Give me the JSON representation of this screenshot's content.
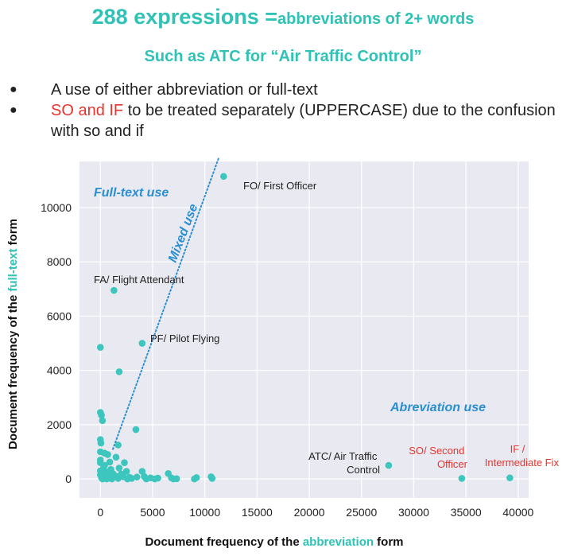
{
  "header": {
    "title_big": "288 expressions =",
    "title_small": "abbreviations of 2+ words",
    "subtitle": "Such as ATC for “Air Traffic Control”"
  },
  "bullets": [
    {
      "text": "A use of either abbreviation or full-text"
    },
    {
      "highlight": "SO and IF",
      "text": " to be treated separately (UPPERCASE) due to the confusion with so and if"
    }
  ],
  "colors": {
    "accent": "#2fc2b6",
    "point": "#3cc6be",
    "region_label": "#2a8fd0",
    "red": "#e8342e",
    "plot_bg": "#e9e9f1"
  },
  "chart_data": {
    "type": "scatter",
    "xlabel_parts": [
      "Document frequency of the ",
      "abbreviation",
      " form"
    ],
    "ylabel_parts": [
      "Document frequency of the ",
      "full-text",
      " form"
    ],
    "xlim": [
      -2000,
      41000
    ],
    "ylim": [
      -700,
      11700
    ],
    "xticks": [
      0,
      5000,
      10000,
      15000,
      20000,
      25000,
      30000,
      35000,
      40000
    ],
    "yticks": [
      0,
      2000,
      4000,
      6000,
      8000,
      10000
    ],
    "grid": true,
    "points": [
      [
        11800,
        11150
      ],
      [
        1300,
        6950
      ],
      [
        4000,
        5000
      ],
      [
        1800,
        3950
      ],
      [
        0,
        4850
      ],
      [
        0,
        2450
      ],
      [
        100,
        2350
      ],
      [
        200,
        2150
      ],
      [
        3400,
        1820
      ],
      [
        0,
        1450
      ],
      [
        50,
        1320
      ],
      [
        1700,
        1250
      ],
      [
        0,
        1000
      ],
      [
        400,
        950
      ],
      [
        700,
        900
      ],
      [
        1500,
        800
      ],
      [
        0,
        700
      ],
      [
        900,
        620
      ],
      [
        2300,
        600
      ],
      [
        0,
        600
      ],
      [
        400,
        500
      ],
      [
        300,
        400
      ],
      [
        1000,
        350
      ],
      [
        1800,
        400
      ],
      [
        0,
        300
      ],
      [
        2500,
        280
      ],
      [
        4000,
        280
      ],
      [
        6500,
        200
      ],
      [
        27600,
        500
      ],
      [
        600,
        250
      ],
      [
        2000,
        180
      ],
      [
        1200,
        200
      ],
      [
        0,
        150
      ],
      [
        300,
        120
      ],
      [
        800,
        120
      ],
      [
        1500,
        100
      ],
      [
        2200,
        80
      ],
      [
        2800,
        60
      ],
      [
        3500,
        70
      ],
      [
        4200,
        90
      ],
      [
        4800,
        40
      ],
      [
        5500,
        30
      ],
      [
        100,
        50
      ],
      [
        400,
        40
      ],
      [
        900,
        30
      ],
      [
        1700,
        20
      ],
      [
        3000,
        20
      ],
      [
        6800,
        40
      ],
      [
        7000,
        0
      ],
      [
        7300,
        10
      ],
      [
        9000,
        0
      ],
      [
        9200,
        50
      ],
      [
        10600,
        80
      ],
      [
        10700,
        20
      ],
      [
        34600,
        20
      ],
      [
        39200,
        40
      ],
      [
        200,
        0
      ],
      [
        600,
        0
      ],
      [
        1100,
        0
      ],
      [
        2600,
        0
      ],
      [
        4400,
        0
      ],
      [
        5200,
        0
      ]
    ],
    "annotations": [
      {
        "text": "FO/ First Officer",
        "x": 11800,
        "y": 11150,
        "color": "dark"
      },
      {
        "text": "FA/ Flight Attendant",
        "x": 1300,
        "y": 6950,
        "color": "dark"
      },
      {
        "text": "PF/ Pilot Flying",
        "x": 4000,
        "y": 5000,
        "color": "dark"
      },
      {
        "text": "ATC/ Air Traffic Control",
        "x": 27600,
        "y": 500,
        "color": "dark"
      },
      {
        "text": "SO/ Second Officer",
        "x": 34600,
        "y": 20,
        "color": "red"
      },
      {
        "text": "IF / Intermediate Fix",
        "x": 39200,
        "y": 40,
        "color": "red"
      }
    ],
    "region_labels": [
      "Full-text use",
      "Mixed use",
      "Abreviation use"
    ],
    "diagonal": {
      "from": [
        1200,
        1100
      ],
      "to": [
        11300,
        11800
      ]
    }
  }
}
